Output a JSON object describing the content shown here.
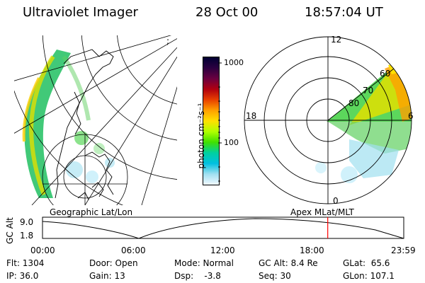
{
  "header": {
    "title": "Ultraviolet Imager",
    "date": "28 Oct 00",
    "time": "18:57:04 UT"
  },
  "left_map": {
    "caption": "Geographic Lat/Lon"
  },
  "right_map": {
    "caption": "Apex MLat/MLT",
    "mlt_labels": {
      "top": "12",
      "left": "18",
      "right": "6",
      "bottom": "0"
    },
    "lat_labels": [
      "60",
      "70",
      "80"
    ]
  },
  "colorbar": {
    "unit": "photon cm⁻²s⁻¹",
    "ticks": [
      "1000",
      "100"
    ],
    "colors": [
      "#000033",
      "#2b0040",
      "#6a0040",
      "#b00010",
      "#e84000",
      "#ffa000",
      "#ffe000",
      "#b0ff00",
      "#40e000",
      "#00d0a0",
      "#00c0e0",
      "#a0e0f0",
      "#f0f8ff"
    ]
  },
  "timeline": {
    "ylabel": "GC Alt",
    "ymax": "9.0",
    "ymin": "1.8",
    "xticks": [
      "00:00",
      "06:00",
      "12:00",
      "18:00",
      "23:59"
    ],
    "current_time_hours": 18.95
  },
  "footer": {
    "flt": "Flt: 1304",
    "ip": "IP: 36.0",
    "door": "Door: Open",
    "gain": "Gain: 13",
    "mode": "Mode: Normal",
    "dsp": "Dsp:    -3.8",
    "gc_alt": "GC Alt: 8.4 Re",
    "seq": "Seq: 30",
    "glat": "GLat:  65.6",
    "glon": "GLon: 107.1"
  }
}
